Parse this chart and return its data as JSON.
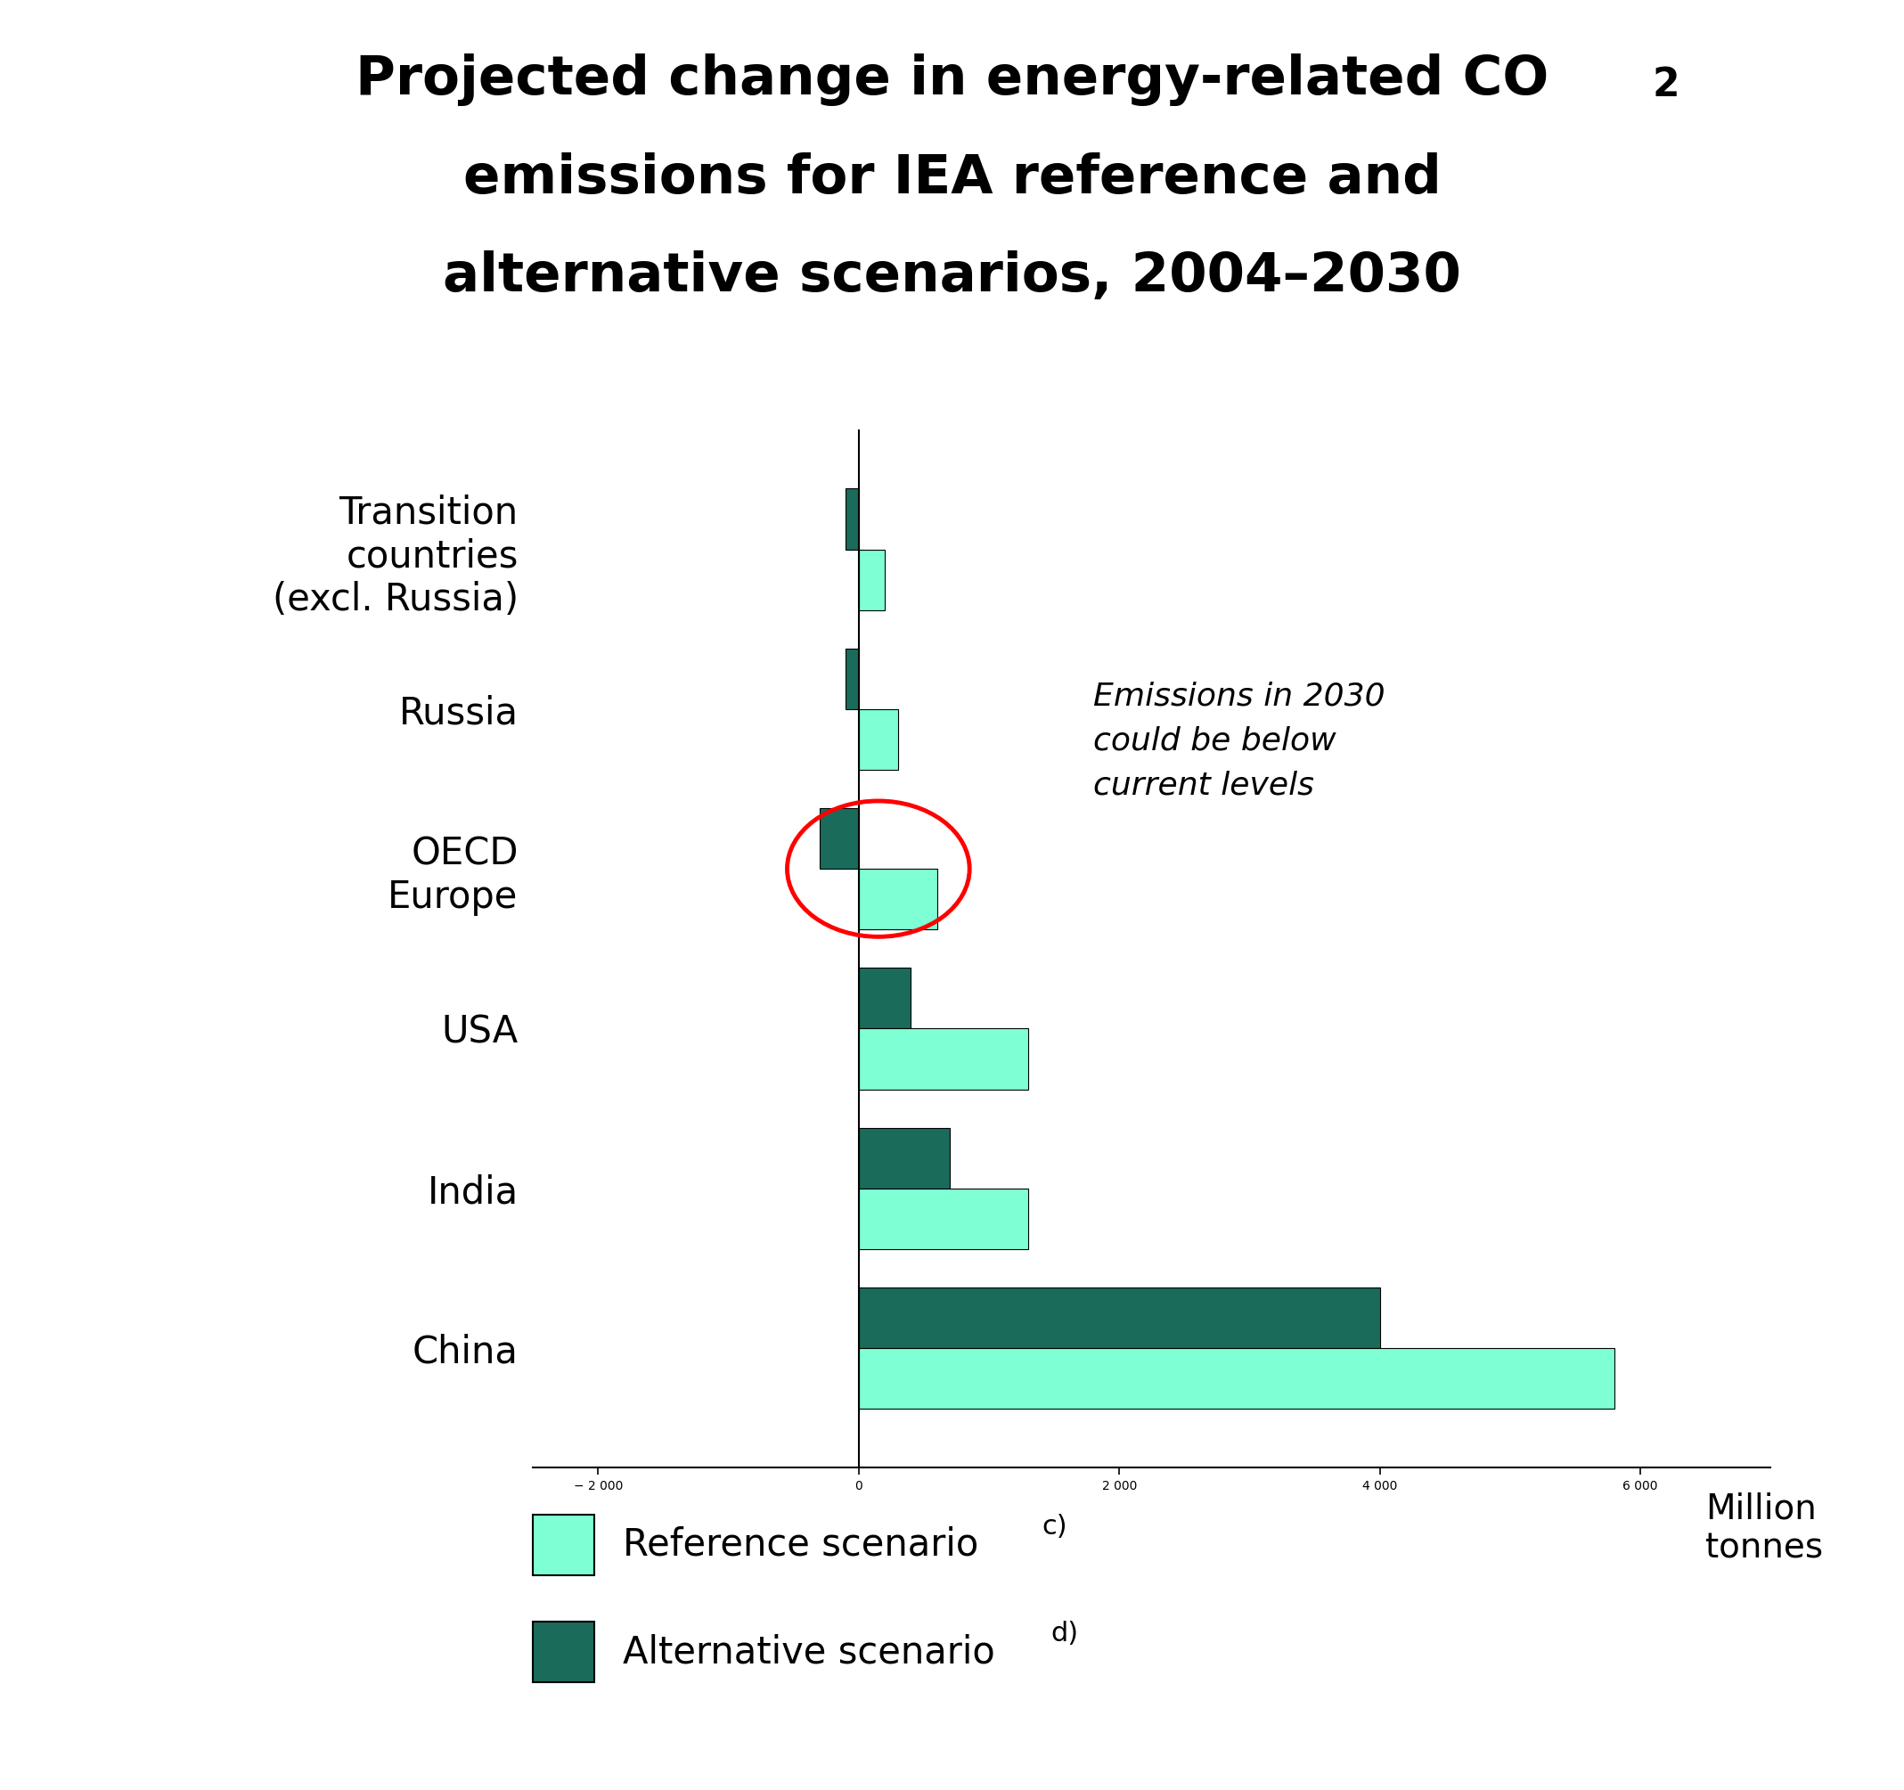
{
  "categories": [
    "China",
    "India",
    "USA",
    "OECD\nEurope",
    "Russia",
    "Transition\ncountries\n(excl. Russia)"
  ],
  "reference_values": [
    5800,
    1300,
    1300,
    600,
    300,
    200
  ],
  "alternative_values": [
    4000,
    700,
    400,
    -300,
    -100,
    -100
  ],
  "ref_color": "#7FFFD4",
  "alt_color": "#1A6B5A",
  "xlim": [
    -2500,
    7000
  ],
  "xticks": [
    -2000,
    0,
    2000,
    4000,
    6000
  ],
  "xtick_labels": [
    "− 2 000",
    "0",
    "2 000",
    "4 000",
    "6 000"
  ],
  "xlabel_text": "Million\ntonnes",
  "annotation_text": "Emissions in 2030\ncould be below\ncurrent levels",
  "legend_ref": "Reference scenario",
  "legend_ref_super": "c)",
  "legend_alt": "Alternative scenario",
  "legend_alt_super": "d)",
  "bar_height": 0.38
}
